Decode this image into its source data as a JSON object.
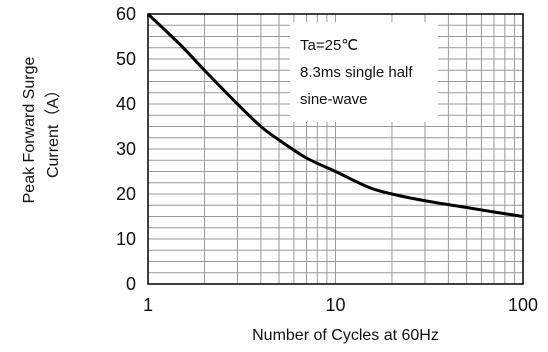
{
  "chart_data": {
    "type": "line",
    "title": "",
    "xlabel": "Number of Cycles at 60Hz",
    "ylabel_lines": [
      "Peak Forward Surge",
      "Current（A）"
    ],
    "x_scale": "log",
    "xlim": [
      1,
      100
    ],
    "ylim": [
      0,
      60
    ],
    "x_ticks": [
      1,
      10,
      100
    ],
    "x_tick_labels": [
      "1",
      "10",
      "100"
    ],
    "y_ticks": [
      0,
      10,
      20,
      30,
      40,
      50,
      60
    ],
    "y_tick_labels": [
      "0",
      "10",
      "20",
      "30",
      "40",
      "50",
      "60"
    ],
    "grid": true,
    "series": [
      {
        "x": [
          1,
          1.5,
          2,
          3,
          4,
          5,
          7,
          10,
          15,
          20,
          30,
          50,
          70,
          100
        ],
        "y": [
          60,
          53,
          47.5,
          40,
          35,
          32,
          28,
          25,
          21.5,
          20,
          18.5,
          17,
          16,
          15
        ]
      }
    ],
    "annotation_lines": [
      "Ta=25℃",
      "8.3ms single half",
      "sine-wave"
    ]
  }
}
